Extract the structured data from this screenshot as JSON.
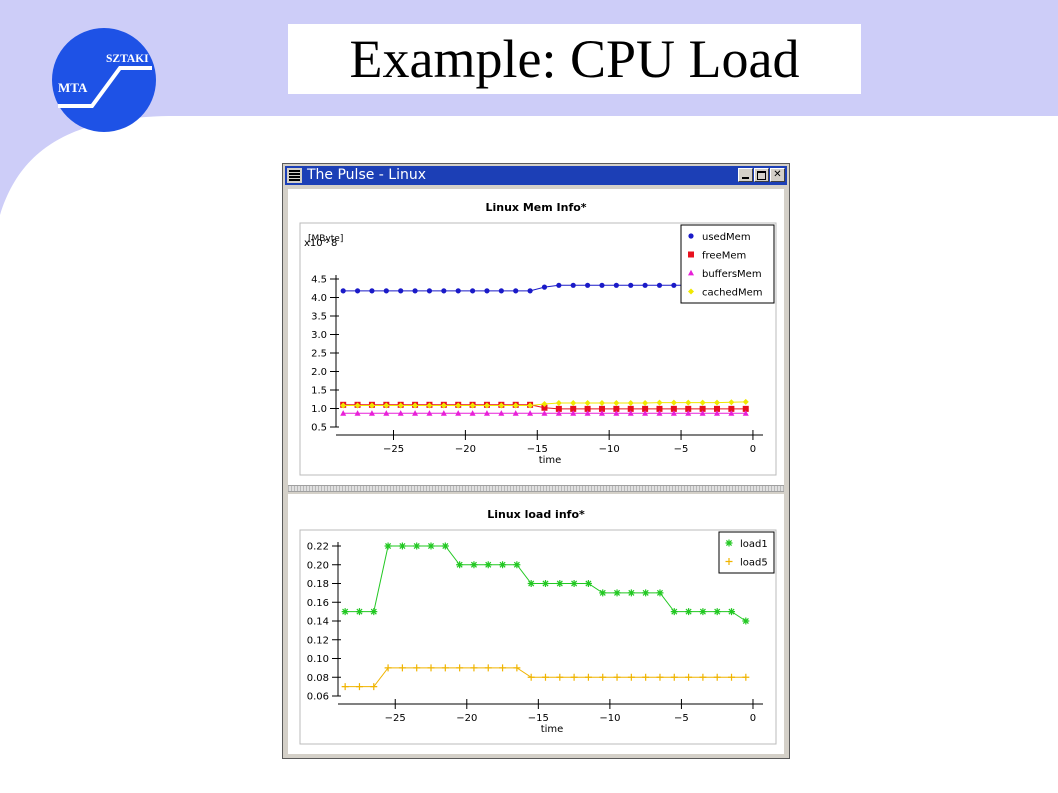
{
  "slide": {
    "title": "Example: CPU Load",
    "colors": {
      "band": "#cdcdf8",
      "logo": "#1e52e6"
    }
  },
  "logo": {
    "left_text": "MTA",
    "right_text": "SZTAKI",
    "icon": "mta-sztaki-logo"
  },
  "window": {
    "title": "The Pulse - Linux",
    "buttons": [
      "minimize",
      "maximize",
      "close"
    ],
    "title_color": "#1c3fb6"
  },
  "chart_data": [
    {
      "type": "scatter",
      "title": "Linux Mem Info*",
      "xlabel": "time",
      "ylabel": "[MByte]",
      "y_scale_note": "x10^8",
      "xlim": [
        -29,
        0.7
      ],
      "ylim": [
        0.5,
        4.5
      ],
      "x_ticks": [
        -25,
        -20,
        -15,
        -10,
        -5,
        0
      ],
      "y_ticks": [
        0.5,
        1.0,
        1.5,
        2.0,
        2.5,
        3.0,
        3.5,
        4.0,
        4.5
      ],
      "legend": "top-right",
      "series": [
        {
          "name": "usedMem",
          "color": "#1a1ac8",
          "marker": "circle",
          "line": true,
          "x": [
            -28.5,
            -27.5,
            -26.5,
            -25.5,
            -24.5,
            -23.5,
            -22.5,
            -21.5,
            -20.5,
            -19.5,
            -18.5,
            -17.5,
            -16.5,
            -15.5,
            -14.5,
            -13.5,
            -12.5,
            -11.5,
            -10.5,
            -9.5,
            -8.5,
            -7.5,
            -6.5,
            -5.5,
            -4.5,
            -3.5,
            -2.5,
            -1.5,
            -0.5
          ],
          "y": [
            4.18,
            4.18,
            4.18,
            4.18,
            4.18,
            4.18,
            4.18,
            4.18,
            4.18,
            4.18,
            4.18,
            4.18,
            4.18,
            4.18,
            4.28,
            4.33,
            4.33,
            4.33,
            4.33,
            4.33,
            4.33,
            4.33,
            4.33,
            4.33,
            4.33,
            4.33,
            4.33,
            4.33,
            4.33
          ]
        },
        {
          "name": "freeMem",
          "color": "#e8101e",
          "marker": "square",
          "line": true,
          "x": [
            -28.5,
            -27.5,
            -26.5,
            -25.5,
            -24.5,
            -23.5,
            -22.5,
            -21.5,
            -20.5,
            -19.5,
            -18.5,
            -17.5,
            -16.5,
            -15.5,
            -14.5,
            -13.5,
            -12.5,
            -11.5,
            -10.5,
            -9.5,
            -8.5,
            -7.5,
            -6.5,
            -5.5,
            -4.5,
            -3.5,
            -2.5,
            -1.5,
            -0.5
          ],
          "y": [
            1.1,
            1.1,
            1.1,
            1.1,
            1.1,
            1.1,
            1.1,
            1.1,
            1.1,
            1.1,
            1.1,
            1.1,
            1.1,
            1.1,
            1.02,
            0.99,
            0.99,
            0.99,
            0.99,
            0.99,
            0.99,
            0.99,
            0.99,
            0.99,
            0.99,
            0.99,
            0.99,
            0.99,
            0.99
          ]
        },
        {
          "name": "buffersMem",
          "color": "#e820d8",
          "marker": "triangle",
          "line": true,
          "x": [
            -28.5,
            -27.5,
            -26.5,
            -25.5,
            -24.5,
            -23.5,
            -22.5,
            -21.5,
            -20.5,
            -19.5,
            -18.5,
            -17.5,
            -16.5,
            -15.5,
            -14.5,
            -13.5,
            -12.5,
            -11.5,
            -10.5,
            -9.5,
            -8.5,
            -7.5,
            -6.5,
            -5.5,
            -4.5,
            -3.5,
            -2.5,
            -1.5,
            -0.5
          ],
          "y": [
            0.87,
            0.87,
            0.87,
            0.87,
            0.87,
            0.87,
            0.87,
            0.87,
            0.87,
            0.87,
            0.87,
            0.87,
            0.87,
            0.87,
            0.87,
            0.87,
            0.87,
            0.87,
            0.87,
            0.87,
            0.87,
            0.87,
            0.87,
            0.87,
            0.87,
            0.87,
            0.87,
            0.87,
            0.87
          ]
        },
        {
          "name": "cachedMem",
          "color": "#f0e800",
          "marker": "diamond",
          "line": true,
          "x": [
            -28.5,
            -27.5,
            -26.5,
            -25.5,
            -24.5,
            -23.5,
            -22.5,
            -21.5,
            -20.5,
            -19.5,
            -18.5,
            -17.5,
            -16.5,
            -15.5,
            -14.5,
            -13.5,
            -12.5,
            -11.5,
            -10.5,
            -9.5,
            -8.5,
            -7.5,
            -6.5,
            -5.5,
            -4.5,
            -3.5,
            -2.5,
            -1.5,
            -0.5
          ],
          "y": [
            1.08,
            1.08,
            1.08,
            1.08,
            1.08,
            1.08,
            1.08,
            1.08,
            1.08,
            1.08,
            1.08,
            1.08,
            1.08,
            1.08,
            1.12,
            1.15,
            1.15,
            1.15,
            1.15,
            1.15,
            1.15,
            1.15,
            1.16,
            1.16,
            1.16,
            1.16,
            1.16,
            1.17,
            1.18
          ]
        }
      ]
    },
    {
      "type": "line",
      "title": "Linux load info*",
      "xlabel": "time",
      "ylabel": "",
      "xlim": [
        -29,
        0.7
      ],
      "ylim": [
        0.06,
        0.22
      ],
      "x_ticks": [
        -25,
        -20,
        -15,
        -10,
        -5,
        0
      ],
      "y_ticks": [
        0.06,
        0.08,
        0.1,
        0.12,
        0.14,
        0.16,
        0.18,
        0.2,
        0.22
      ],
      "legend": "top-right",
      "series": [
        {
          "name": "load1",
          "color": "#22c822",
          "marker": "asterisk",
          "line": true,
          "x": [
            -28.5,
            -27.5,
            -26.5,
            -25.5,
            -24.5,
            -23.5,
            -22.5,
            -21.5,
            -20.5,
            -19.5,
            -18.5,
            -17.5,
            -16.5,
            -15.5,
            -14.5,
            -13.5,
            -12.5,
            -11.5,
            -10.5,
            -9.5,
            -8.5,
            -7.5,
            -6.5,
            -5.5,
            -4.5,
            -3.5,
            -2.5,
            -1.5,
            -0.5
          ],
          "y": [
            0.15,
            0.15,
            0.15,
            0.22,
            0.22,
            0.22,
            0.22,
            0.22,
            0.2,
            0.2,
            0.2,
            0.2,
            0.2,
            0.18,
            0.18,
            0.18,
            0.18,
            0.18,
            0.17,
            0.17,
            0.17,
            0.17,
            0.17,
            0.15,
            0.15,
            0.15,
            0.15,
            0.15,
            0.14
          ]
        },
        {
          "name": "load5",
          "color": "#f0b400",
          "marker": "plus",
          "line": true,
          "x": [
            -28.5,
            -27.5,
            -26.5,
            -25.5,
            -24.5,
            -23.5,
            -22.5,
            -21.5,
            -20.5,
            -19.5,
            -18.5,
            -17.5,
            -16.5,
            -15.5,
            -14.5,
            -13.5,
            -12.5,
            -11.5,
            -10.5,
            -9.5,
            -8.5,
            -7.5,
            -6.5,
            -5.5,
            -4.5,
            -3.5,
            -2.5,
            -1.5,
            -0.5
          ],
          "y": [
            0.07,
            0.07,
            0.07,
            0.09,
            0.09,
            0.09,
            0.09,
            0.09,
            0.09,
            0.09,
            0.09,
            0.09,
            0.09,
            0.08,
            0.08,
            0.08,
            0.08,
            0.08,
            0.08,
            0.08,
            0.08,
            0.08,
            0.08,
            0.08,
            0.08,
            0.08,
            0.08,
            0.08,
            0.08
          ]
        }
      ]
    }
  ]
}
